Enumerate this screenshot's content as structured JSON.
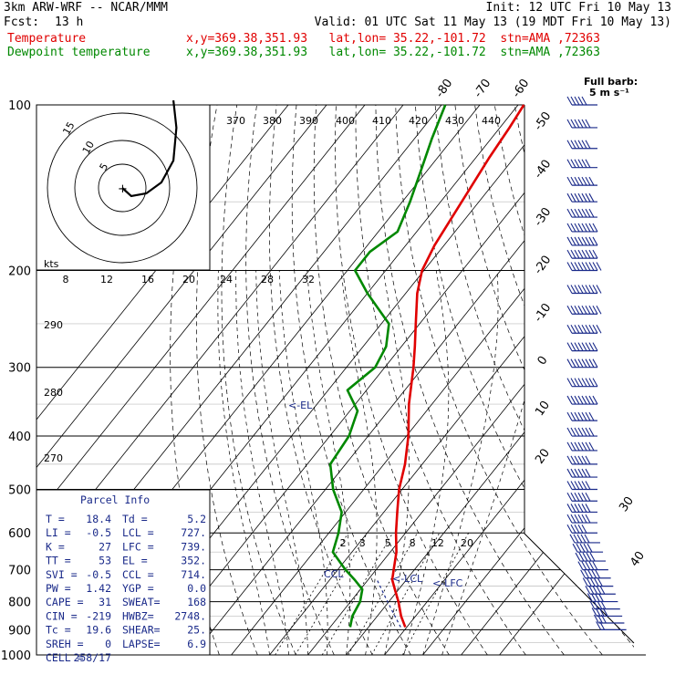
{
  "header": {
    "model": "3km ARW-WRF -- NCAR/MMM",
    "init": "Init: 12 UTC Fri 10 May 13",
    "fcst_label": "Fcst:",
    "fcst_value": "13 h",
    "valid": "Valid: 01 UTC Sat 11 May 13 (19 MDT Fri 10 May 13)",
    "temp_label": "Temperature",
    "dew_label": "Dewpoint temperature",
    "loc_line": "x,y=369.38,351.93   lat,lon= 35.22,-101.72  stn=AMA ,72363"
  },
  "wind_barb_title": "Full barb:",
  "wind_barb_units": "5 m s⁻¹",
  "parcel_info": {
    "title": "Parcel Info",
    "rows": [
      [
        "T  =",
        "18.4",
        "Td =",
        "5.2"
      ],
      [
        "LI =",
        "-0.5",
        "LCL =",
        "727."
      ],
      [
        "K  =",
        "27",
        "LFC =",
        "739."
      ],
      [
        "TT =",
        "53",
        "EL  =",
        "352."
      ],
      [
        "SVI =",
        "-0.5",
        "CCL =",
        "714."
      ],
      [
        "PW =",
        "1.42",
        "YGP =",
        "0.0"
      ],
      [
        "CAPE =",
        "31",
        "SWEAT=",
        "168"
      ],
      [
        "CIN =",
        "-219",
        "HWBZ=",
        "2748."
      ],
      [
        "Tc =",
        "19.6",
        "SHEAR=",
        "25."
      ],
      [
        "SREH =",
        "0",
        "LAPSE=",
        "6.9"
      ],
      [
        "CELL =",
        "258/17",
        "",
        ""
      ]
    ]
  },
  "annotations": {
    "el": "<-EL",
    "lcl": "<-LCL",
    "lfc": "<-LFC",
    "ccl": "CCL",
    "hodo_units": "kts"
  },
  "chart_data": {
    "type": "line",
    "title": "3km ARW-WRF -- NCAR/MMM",
    "ylabel": "",
    "xlabel": "",
    "pressure_ticks": [
      100,
      200,
      300,
      400,
      500,
      600,
      700,
      800,
      900,
      1000
    ],
    "isotherm_labels": [
      -80,
      -70,
      -60,
      -50,
      -40,
      -30,
      -20,
      -10,
      0,
      10,
      20,
      30,
      40
    ],
    "theta_labels": [
      370,
      380,
      390,
      400,
      410,
      420,
      430,
      440
    ],
    "theta_left_labels": [
      290,
      280,
      270
    ],
    "mixing_ratio_labels": [
      2,
      3,
      5,
      8,
      12,
      20
    ],
    "hodograph_speed_labels": [
      8,
      12,
      16,
      20,
      24,
      28,
      32
    ],
    "hodograph_ring_labels": [
      5,
      10,
      15
    ],
    "series": [
      {
        "name": "Temperature",
        "color": "#e00000",
        "points": [
          [
            890,
            19.6
          ],
          [
            850,
            16.2
          ],
          [
            800,
            12.5
          ],
          [
            760,
            9.0
          ],
          [
            730,
            6.3
          ],
          [
            700,
            4.6
          ],
          [
            650,
            1.6
          ],
          [
            600,
            -2.5
          ],
          [
            550,
            -6.5
          ],
          [
            500,
            -10.8
          ],
          [
            450,
            -14.5
          ],
          [
            400,
            -19.5
          ],
          [
            350,
            -26.0
          ],
          [
            300,
            -32.5
          ],
          [
            275,
            -36.5
          ],
          [
            250,
            -41.0
          ],
          [
            220,
            -47.0
          ],
          [
            200,
            -50.5
          ],
          [
            180,
            -52.5
          ],
          [
            150,
            -54.5
          ],
          [
            125,
            -56.5
          ],
          [
            110,
            -57.5
          ],
          [
            100,
            -58.5
          ]
        ]
      },
      {
        "name": "Dewpoint temperature",
        "color": "#008800",
        "points": [
          [
            890,
            5.2
          ],
          [
            850,
            3.5
          ],
          [
            800,
            2.5
          ],
          [
            760,
            0.5
          ],
          [
            730,
            -3.5
          ],
          [
            700,
            -8.0
          ],
          [
            650,
            -15.0
          ],
          [
            600,
            -17.5
          ],
          [
            550,
            -21.0
          ],
          [
            500,
            -28.0
          ],
          [
            450,
            -34.0
          ],
          [
            400,
            -35.0
          ],
          [
            360,
            -38.0
          ],
          [
            330,
            -45.0
          ],
          [
            300,
            -42.5
          ],
          [
            275,
            -44.0
          ],
          [
            250,
            -48.0
          ],
          [
            220,
            -60.0
          ],
          [
            200,
            -68.0
          ],
          [
            185,
            -68.0
          ],
          [
            170,
            -65.0
          ],
          [
            150,
            -68.0
          ],
          [
            130,
            -72.0
          ],
          [
            115,
            -75.5
          ],
          [
            100,
            -79.0
          ]
        ]
      }
    ],
    "wind_barbs": [
      [
        900,
        270,
        10
      ],
      [
        875,
        265,
        15
      ],
      [
        850,
        260,
        20
      ],
      [
        825,
        255,
        20
      ],
      [
        800,
        250,
        20
      ],
      [
        775,
        255,
        25
      ],
      [
        750,
        255,
        25
      ],
      [
        725,
        255,
        25
      ],
      [
        700,
        255,
        25
      ],
      [
        675,
        260,
        25
      ],
      [
        650,
        260,
        25
      ],
      [
        625,
        260,
        25
      ],
      [
        600,
        265,
        25
      ],
      [
        575,
        265,
        30
      ],
      [
        550,
        265,
        30
      ],
      [
        525,
        270,
        30
      ],
      [
        500,
        270,
        30
      ],
      [
        475,
        270,
        30
      ],
      [
        450,
        270,
        30
      ],
      [
        425,
        270,
        35
      ],
      [
        400,
        270,
        35
      ],
      [
        375,
        270,
        35
      ],
      [
        350,
        270,
        40
      ],
      [
        325,
        270,
        40
      ],
      [
        300,
        270,
        40
      ],
      [
        280,
        270,
        40
      ],
      [
        260,
        270,
        45
      ],
      [
        240,
        270,
        45
      ],
      [
        220,
        270,
        45
      ],
      [
        200,
        270,
        45
      ],
      [
        190,
        270,
        40
      ],
      [
        180,
        270,
        40
      ],
      [
        170,
        270,
        40
      ],
      [
        160,
        270,
        35
      ],
      [
        150,
        270,
        35
      ],
      [
        140,
        275,
        35
      ],
      [
        130,
        275,
        30
      ],
      [
        120,
        275,
        30
      ],
      [
        110,
        275,
        30
      ],
      [
        100,
        275,
        25
      ]
    ],
    "hodograph": [
      [
        0,
        0
      ],
      [
        3,
        -3
      ],
      [
        8,
        -2
      ],
      [
        13,
        2
      ],
      [
        17,
        10
      ],
      [
        18,
        22
      ],
      [
        17,
        32
      ]
    ]
  }
}
